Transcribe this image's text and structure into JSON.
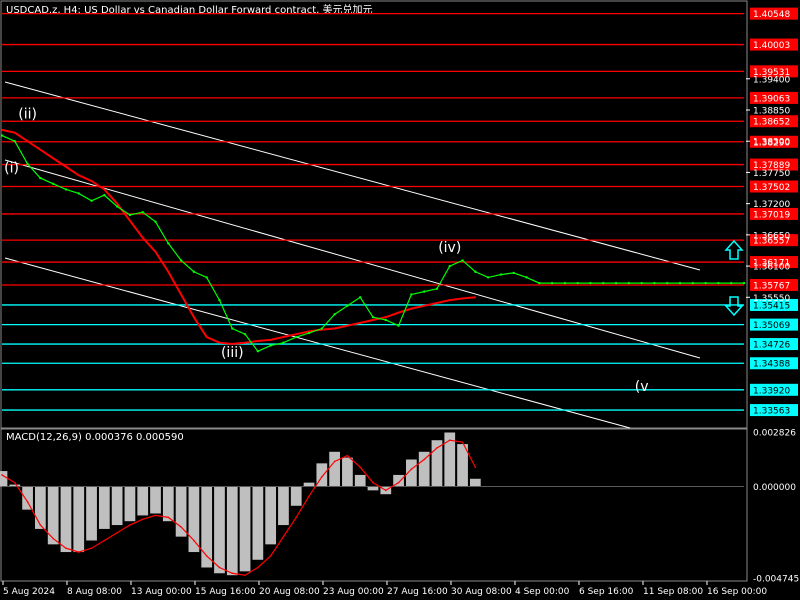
{
  "chart_data": [
    {
      "type": "line",
      "title": "USDCAD.z, H4: US Dollar vs Canadian Dollar Forward contract, 美元兑加元",
      "symbol": "USDCAD.z",
      "timeframe": "H4",
      "ylim": [
        1.333,
        1.407
      ],
      "grid": false,
      "price_ticks": [
        "1.39400",
        "1.38850",
        "1.38300",
        "1.37750",
        "1.37200",
        "1.36650",
        "1.36100",
        "1.35550"
      ],
      "x_tick_labels": [
        "5 Aug 2024",
        "8 Aug 08:00",
        "13 Aug 00:00",
        "15 Aug 16:00",
        "20 Aug 08:00",
        "23 Aug 00:00",
        "27 Aug 16:00",
        "30 Aug 08:00",
        "4 Sep 00:00",
        "6 Sep 16:00",
        "11 Sep 08:00",
        "16 Sep 00:00"
      ],
      "horizontal_levels": [
        {
          "label": "1.40548",
          "value": 1.40548,
          "color": "#ff0000"
        },
        {
          "label": "1.40003",
          "value": 1.40003,
          "color": "#ff0000"
        },
        {
          "label": "1.39531",
          "value": 1.39531,
          "color": "#ff0000"
        },
        {
          "label": "1.39063",
          "value": 1.39063,
          "color": "#ff0000"
        },
        {
          "label": "1.38652",
          "value": 1.38652,
          "color": "#ff0000"
        },
        {
          "label": "1.38290",
          "value": 1.3829,
          "color": "#ff0000"
        },
        {
          "label": "1.37889",
          "value": 1.37889,
          "color": "#ff0000"
        },
        {
          "label": "1.37502",
          "value": 1.37502,
          "color": "#ff0000"
        },
        {
          "label": "1.37019",
          "value": 1.37019,
          "color": "#ff0000"
        },
        {
          "label": "1.36557",
          "value": 1.36557,
          "color": "#ff0000"
        },
        {
          "label": "1.36171",
          "value": 1.36171,
          "color": "#ff0000"
        },
        {
          "label": "1.35767",
          "value": 1.35767,
          "color": "#ff0000"
        },
        {
          "label": "1.35415",
          "value": 1.35415,
          "color": "#00ffff"
        },
        {
          "label": "1.35069",
          "value": 1.35069,
          "color": "#00ffff"
        },
        {
          "label": "1.34726",
          "value": 1.34726,
          "color": "#00ffff"
        },
        {
          "label": "1.34388",
          "value": 1.34388,
          "color": "#00ffff"
        },
        {
          "label": "1.33920",
          "value": 1.3392,
          "color": "#00ffff"
        },
        {
          "label": "1.33563",
          "value": 1.33563,
          "color": "#00ffff"
        }
      ],
      "series": [
        {
          "name": "",
          "color": "#00ff00",
          "x": [
            0,
            4,
            8,
            12,
            16,
            20,
            24,
            28,
            32,
            36,
            40,
            44,
            48,
            52,
            56,
            60,
            64,
            68,
            72,
            76,
            80,
            84,
            88,
            92,
            96,
            100,
            104,
            108,
            112,
            116,
            120,
            124,
            128,
            132,
            136,
            140,
            144,
            148,
            152,
            156,
            160,
            164,
            168,
            172,
            176,
            180,
            184,
            188,
            192,
            196,
            200,
            204,
            208,
            212,
            216,
            220,
            224,
            228,
            232
          ],
          "values": [
            1.384,
            1.383,
            1.379,
            1.3765,
            1.3755,
            1.3745,
            1.3738,
            1.3725,
            1.3735,
            1.3715,
            1.37,
            1.3705,
            1.3688,
            1.365,
            1.362,
            1.36,
            1.359,
            1.355,
            1.35,
            1.349,
            1.346,
            1.347,
            1.3475,
            1.3485,
            1.3492,
            1.35,
            1.3525,
            1.354,
            1.3555,
            1.352,
            1.3515,
            1.3505,
            1.356,
            1.3565,
            1.357,
            1.361,
            1.362,
            1.36,
            1.359,
            1.3595,
            1.3598,
            1.359,
            1.358,
            1.358,
            1.358,
            1.358,
            1.358,
            1.358,
            1.358,
            1.358,
            1.358,
            1.358,
            1.358,
            1.358,
            1.358,
            1.358,
            1.358,
            1.358,
            1.358
          ]
        },
        {
          "name": "",
          "color": "#ff0000",
          "x": [
            0,
            4,
            8,
            12,
            16,
            20,
            24,
            28,
            32,
            36,
            40,
            44,
            48,
            52,
            56,
            60,
            64,
            68,
            72,
            76,
            80,
            84,
            88,
            92,
            96,
            100,
            104,
            108,
            112,
            116,
            120,
            124,
            128,
            132,
            136,
            140,
            144,
            148
          ],
          "values": [
            1.385,
            1.3845,
            1.383,
            1.3815,
            1.38,
            1.3785,
            1.377,
            1.376,
            1.3745,
            1.372,
            1.369,
            1.366,
            1.3635,
            1.36,
            1.356,
            1.352,
            1.3485,
            1.3475,
            1.3473,
            1.3475,
            1.3478,
            1.348,
            1.3485,
            1.349,
            1.3495,
            1.3498,
            1.35,
            1.3505,
            1.351,
            1.3515,
            1.352,
            1.3528,
            1.3535,
            1.354,
            1.3545,
            1.355,
            1.3553,
            1.3555
          ]
        }
      ],
      "wave_labels": [
        {
          "text": "(ii)",
          "x": 8,
          "y": 1.387
        },
        {
          "text": "(i)",
          "x": 3,
          "y": 1.3775
        },
        {
          "text": "(iii)",
          "x": 72,
          "y": 1.345
        },
        {
          "text": "(iv)",
          "x": 140,
          "y": 1.3635
        },
        {
          "text": "(v",
          "x": 200,
          "y": 1.339
        }
      ],
      "arrows": [
        {
          "name": "up-arrow",
          "direction": "up",
          "color": "#00ffff"
        },
        {
          "name": "down-arrow",
          "direction": "down",
          "color": "#00ffff"
        }
      ]
    },
    {
      "type": "bar",
      "title": "MACD(12,26,9) 0.000376 0.000590",
      "ylim": [
        -0.004745,
        0.002826
      ],
      "y_tick_labels": [
        "0.002826",
        "0.000000",
        "-0.004745"
      ],
      "macd_series": {
        "name": "MACD",
        "color": "#bfbfbf",
        "x": [
          0,
          4,
          8,
          12,
          16,
          20,
          24,
          28,
          32,
          36,
          40,
          44,
          48,
          52,
          56,
          60,
          64,
          68,
          72,
          76,
          80,
          84,
          88,
          92,
          96,
          100,
          104,
          108,
          112,
          116,
          120,
          124,
          128,
          132,
          136,
          140,
          144,
          148
        ],
        "values": [
          0.0008,
          0.0001,
          -0.0012,
          -0.0022,
          -0.003,
          -0.0034,
          -0.0034,
          -0.0028,
          -0.0022,
          -0.002,
          -0.0018,
          -0.0015,
          -0.0014,
          -0.0018,
          -0.0026,
          -0.0034,
          -0.0042,
          -0.0045,
          -0.0046,
          -0.0044,
          -0.0038,
          -0.003,
          -0.002,
          -0.001,
          0.0002,
          0.0012,
          0.0018,
          0.0015,
          0.0006,
          -0.0002,
          -0.0004,
          0.0006,
          0.0014,
          0.0018,
          0.0024,
          0.0028,
          0.0022,
          0.0004
        ]
      },
      "signal_series": {
        "name": "Signal",
        "color": "#ff0000",
        "x": [
          0,
          4,
          8,
          12,
          16,
          20,
          24,
          28,
          32,
          36,
          40,
          44,
          48,
          52,
          56,
          60,
          64,
          68,
          72,
          76,
          80,
          84,
          88,
          92,
          96,
          100,
          104,
          108,
          112,
          116,
          120,
          124,
          128,
          132,
          136,
          140,
          144,
          148
        ],
        "values": [
          0.0006,
          0.0002,
          -0.0008,
          -0.002,
          -0.0027,
          -0.0032,
          -0.0034,
          -0.0032,
          -0.0028,
          -0.0024,
          -0.002,
          -0.0017,
          -0.0015,
          -0.0016,
          -0.0021,
          -0.0028,
          -0.0036,
          -0.0042,
          -0.0045,
          -0.0046,
          -0.0042,
          -0.0036,
          -0.0026,
          -0.0016,
          -0.0005,
          0.0005,
          0.0013,
          0.0016,
          0.001,
          0.0002,
          -0.0002,
          0.0002,
          0.0009,
          0.0014,
          0.002,
          0.0024,
          0.0023,
          0.001
        ]
      }
    }
  ]
}
